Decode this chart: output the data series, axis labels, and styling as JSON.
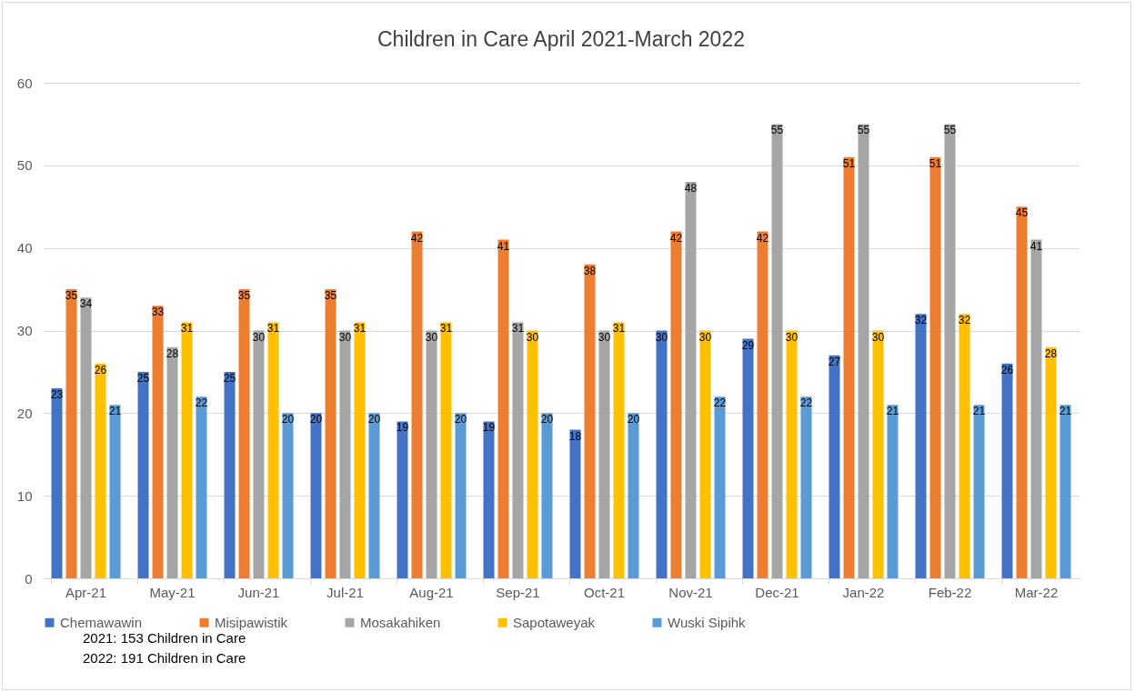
{
  "chart_data": {
    "type": "bar",
    "title": "Children in Care April 2021-March 2022",
    "categories": [
      "Apr-21",
      "May-21",
      "Jun-21",
      "Jul-21",
      "Aug-21",
      "Sep-21",
      "Oct-21",
      "Nov-21",
      "Dec-21",
      "Jan-22",
      "Feb-22",
      "Mar-22"
    ],
    "series": [
      {
        "name": "Chemawawin",
        "color": "#4472c4",
        "values": [
          23,
          25,
          25,
          20,
          19,
          19,
          18,
          30,
          29,
          27,
          32,
          26
        ]
      },
      {
        "name": "Misipawistik",
        "color": "#ed7d31",
        "values": [
          35,
          33,
          35,
          35,
          42,
          41,
          38,
          42,
          42,
          51,
          51,
          45
        ]
      },
      {
        "name": "Mosakahiken",
        "color": "#a5a5a5",
        "values": [
          34,
          28,
          30,
          30,
          30,
          31,
          30,
          48,
          55,
          55,
          55,
          41
        ]
      },
      {
        "name": "Sapotaweyak",
        "color": "#ffc000",
        "values": [
          26,
          31,
          31,
          31,
          31,
          30,
          31,
          30,
          30,
          30,
          32,
          28
        ]
      },
      {
        "name": "Wuski Sipihk",
        "color": "#5b9bd5",
        "values": [
          21,
          22,
          20,
          20,
          20,
          20,
          20,
          22,
          22,
          21,
          21,
          21
        ]
      }
    ],
    "ylim": [
      0,
      60
    ],
    "yticks": [
      0,
      10,
      20,
      30,
      40,
      50,
      60
    ],
    "grid": "y",
    "legend": "bottom",
    "data_labels": true,
    "annotations": [
      "2021: 153 Children in Care",
      "2022: 191 Children in Care"
    ]
  }
}
